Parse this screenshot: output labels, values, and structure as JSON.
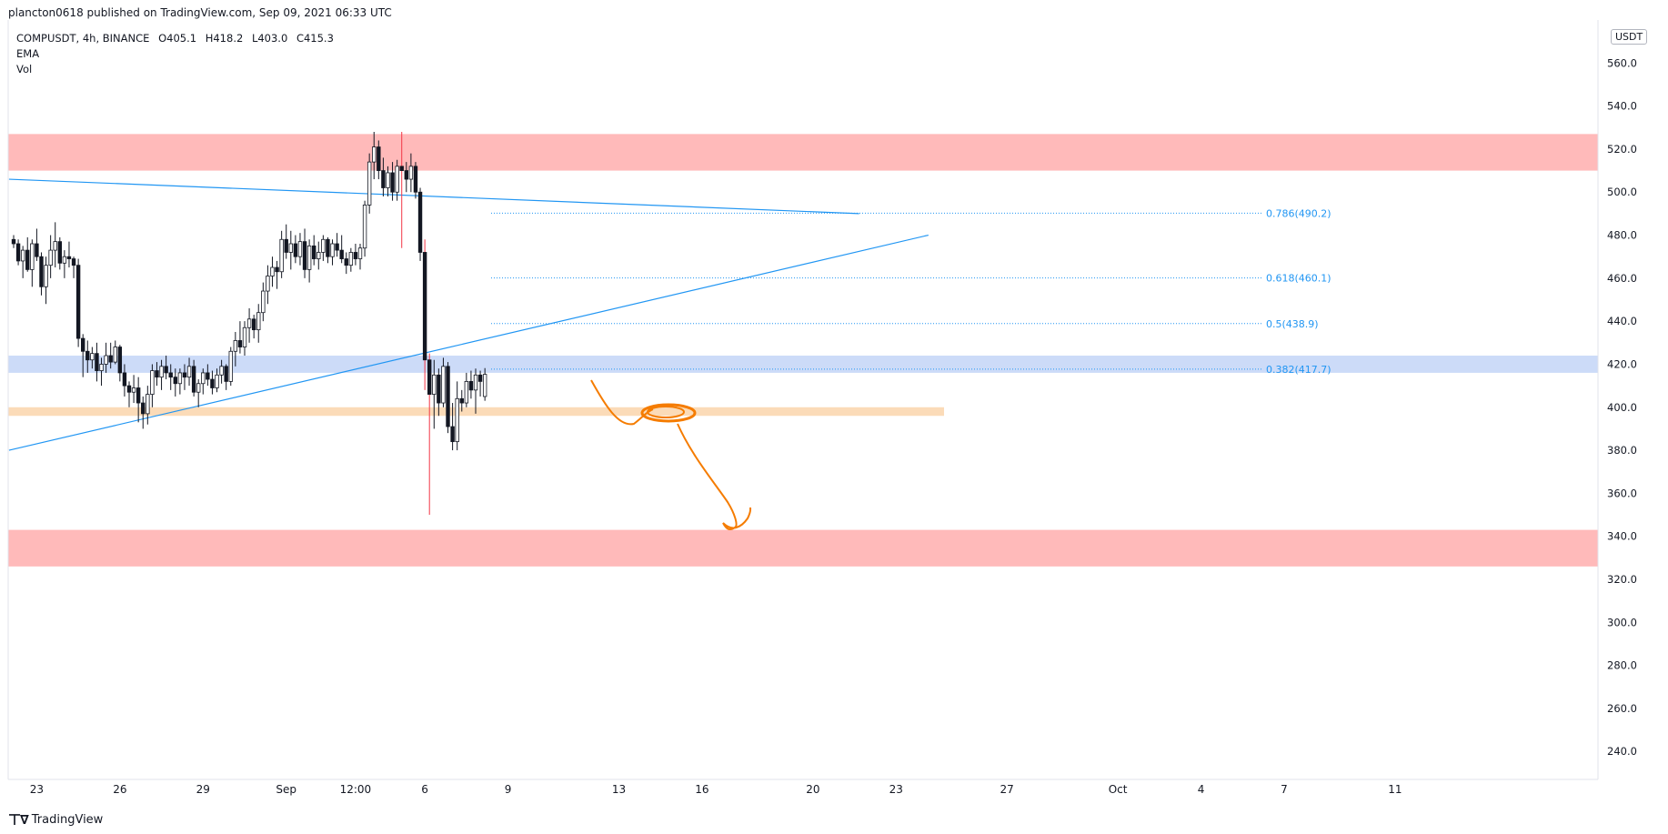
{
  "header": {
    "text": "plancton0618 published on TradingView.com, Sep 09, 2021 06:33 UTC"
  },
  "legend": {
    "symbol": "COMPUSDT, 4h, BINANCE",
    "open": "O405.1",
    "high": "H418.2",
    "low": "L403.0",
    "close": "C415.3",
    "indicators": [
      "EMA",
      "Vol"
    ]
  },
  "footer": {
    "brand": "TradingView"
  },
  "chart_data": {
    "type": "candlestick",
    "symbol": "COMPUSDT",
    "interval": "4h",
    "exchange": "BINANCE",
    "unit": "USDT",
    "ylim": [
      227,
      580
    ],
    "y_ticks": [
      240,
      260,
      280,
      300,
      320,
      340,
      360,
      380,
      400,
      420,
      440,
      460,
      480,
      500,
      520,
      540,
      560
    ],
    "x_ticks": [
      {
        "label": "23",
        "bar": 5
      },
      {
        "label": "26",
        "bar": 23
      },
      {
        "label": "29",
        "bar": 41
      },
      {
        "label": "Sep",
        "bar": 59
      },
      {
        "label": "12:00",
        "bar": 74
      },
      {
        "label": "6",
        "bar": 89
      },
      {
        "label": "9",
        "bar": 107
      },
      {
        "label": "13",
        "bar": 131
      },
      {
        "label": "16",
        "bar": 149
      },
      {
        "label": "20",
        "bar": 173
      },
      {
        "label": "23",
        "bar": 191
      },
      {
        "label": "27",
        "bar": 215
      },
      {
        "label": "Oct",
        "bar": 239
      },
      {
        "label": "4",
        "bar": 257
      },
      {
        "label": "7",
        "bar": 275
      },
      {
        "label": "11",
        "bar": 299
      }
    ],
    "candles": [
      [
        478,
        480,
        474,
        476
      ],
      [
        476,
        478,
        466,
        468
      ],
      [
        468,
        475,
        460,
        473
      ],
      [
        473,
        479,
        463,
        464
      ],
      [
        464,
        478,
        456,
        476
      ],
      [
        476,
        483,
        468,
        470
      ],
      [
        470,
        472,
        452,
        456
      ],
      [
        456,
        470,
        448,
        466
      ],
      [
        466,
        480,
        460,
        473
      ],
      [
        473,
        486,
        465,
        477
      ],
      [
        477,
        479,
        464,
        467
      ],
      [
        467,
        473,
        460,
        470
      ],
      [
        470,
        477,
        465,
        469
      ],
      [
        469,
        470,
        460,
        466
      ],
      [
        466,
        469,
        428,
        432
      ],
      [
        432,
        434,
        414,
        426
      ],
      [
        426,
        431,
        416,
        422
      ],
      [
        422,
        428,
        418,
        425
      ],
      [
        425,
        430,
        412,
        417
      ],
      [
        417,
        423,
        410,
        420
      ],
      [
        420,
        430,
        416,
        424
      ],
      [
        424,
        430,
        418,
        421
      ],
      [
        421,
        431,
        420,
        428
      ],
      [
        428,
        429,
        412,
        416
      ],
      [
        416,
        420,
        405,
        410
      ],
      [
        410,
        412,
        400,
        407
      ],
      [
        407,
        415,
        402,
        409
      ],
      [
        409,
        414,
        393,
        402
      ],
      [
        402,
        405,
        390,
        397
      ],
      [
        397,
        410,
        392,
        406
      ],
      [
        406,
        420,
        400,
        417
      ],
      [
        417,
        421,
        410,
        414
      ],
      [
        414,
        422,
        408,
        419
      ],
      [
        419,
        424,
        413,
        416
      ],
      [
        416,
        420,
        408,
        414
      ],
      [
        414,
        418,
        405,
        411
      ],
      [
        411,
        418,
        406,
        416
      ],
      [
        416,
        420,
        408,
        414
      ],
      [
        414,
        423,
        410,
        419
      ],
      [
        419,
        422,
        405,
        407
      ],
      [
        407,
        413,
        400,
        411
      ],
      [
        411,
        418,
        406,
        416
      ],
      [
        416,
        420,
        410,
        413
      ],
      [
        413,
        417,
        406,
        409
      ],
      [
        409,
        418,
        407,
        415
      ],
      [
        415,
        422,
        411,
        419
      ],
      [
        419,
        420,
        408,
        412
      ],
      [
        412,
        428,
        410,
        426
      ],
      [
        426,
        435,
        419,
        431
      ],
      [
        431,
        440,
        425,
        428
      ],
      [
        428,
        440,
        424,
        437
      ],
      [
        437,
        446,
        430,
        441
      ],
      [
        441,
        443,
        432,
        436
      ],
      [
        436,
        448,
        430,
        444
      ],
      [
        444,
        458,
        440,
        454
      ],
      [
        454,
        466,
        448,
        461
      ],
      [
        461,
        470,
        456,
        465
      ],
      [
        465,
        468,
        455,
        463
      ],
      [
        463,
        482,
        460,
        478
      ],
      [
        478,
        485,
        469,
        472
      ],
      [
        472,
        482,
        464,
        476
      ],
      [
        476,
        480,
        467,
        470
      ],
      [
        470,
        481,
        466,
        477
      ],
      [
        477,
        483,
        460,
        464
      ],
      [
        464,
        478,
        458,
        475
      ],
      [
        475,
        480,
        466,
        469
      ],
      [
        469,
        477,
        464,
        472
      ],
      [
        472,
        480,
        468,
        478
      ],
      [
        478,
        479,
        467,
        470
      ],
      [
        470,
        478,
        466,
        476
      ],
      [
        476,
        481,
        470,
        473
      ],
      [
        473,
        480,
        467,
        469
      ],
      [
        469,
        472,
        462,
        466
      ],
      [
        466,
        474,
        463,
        472
      ],
      [
        472,
        476,
        466,
        469
      ],
      [
        469,
        476,
        464,
        474
      ],
      [
        474,
        496,
        470,
        494
      ],
      [
        494,
        518,
        490,
        514
      ],
      [
        514,
        528,
        506,
        521
      ],
      [
        521,
        524,
        506,
        510
      ],
      [
        510,
        516,
        498,
        502
      ],
      [
        502,
        512,
        498,
        509
      ],
      [
        509,
        514,
        496,
        500
      ],
      [
        500,
        515,
        496,
        512
      ],
      [
        512,
        528,
        474,
        510
      ],
      [
        510,
        514,
        500,
        506
      ],
      [
        506,
        518,
        500,
        512
      ],
      [
        512,
        514,
        497,
        500
      ],
      [
        500,
        502,
        468,
        472
      ],
      [
        472,
        478,
        408,
        422
      ],
      [
        422,
        425,
        350,
        406
      ],
      [
        406,
        422,
        390,
        415
      ],
      [
        415,
        418,
        396,
        402
      ],
      [
        402,
        423,
        400,
        419
      ],
      [
        419,
        421,
        388,
        391
      ],
      [
        391,
        402,
        380,
        384
      ],
      [
        384,
        412,
        380,
        404
      ],
      [
        404,
        408,
        398,
        402
      ],
      [
        402,
        416,
        400,
        412
      ],
      [
        412,
        417,
        404,
        408
      ],
      [
        408,
        418,
        397,
        415
      ],
      [
        415,
        417,
        405,
        412
      ],
      [
        405,
        418.2,
        403,
        415.3
      ]
    ],
    "zones": [
      {
        "type": "resistance",
        "from": 510,
        "to": 527,
        "color": "#ffb3b3"
      },
      {
        "type": "support",
        "from": 416,
        "to": 424,
        "color": "#c6d7f7"
      },
      {
        "type": "support",
        "from": 396,
        "to": 400,
        "color": "#fbd7b0"
      },
      {
        "type": "support",
        "from": 326,
        "to": 343,
        "color": "#ffb3b3"
      }
    ],
    "fibonacci": [
      {
        "label": "0.786(490.2)",
        "value": 490.2
      },
      {
        "label": "0.618(460.1)",
        "value": 460.1
      },
      {
        "label": "0.5(438.9)",
        "value": 438.9
      },
      {
        "label": "0.382(417.7)",
        "value": 417.7
      }
    ],
    "trendlines": [
      {
        "from": {
          "bar": -1,
          "price": 506
        },
        "to": {
          "bar": 183,
          "price": 490
        },
        "color": "#2196f3"
      },
      {
        "from": {
          "bar": -1,
          "price": 380
        },
        "to": {
          "bar": 198,
          "price": 480
        },
        "color": "#2196f3"
      }
    ],
    "colors": {
      "up": "#ffffff",
      "down": "#131722",
      "wick_up": "#131722",
      "wick_down": "#131722",
      "long_wick": "#f23645",
      "projection": "#f57c00",
      "fib": "#2196f3"
    },
    "grid": false
  }
}
